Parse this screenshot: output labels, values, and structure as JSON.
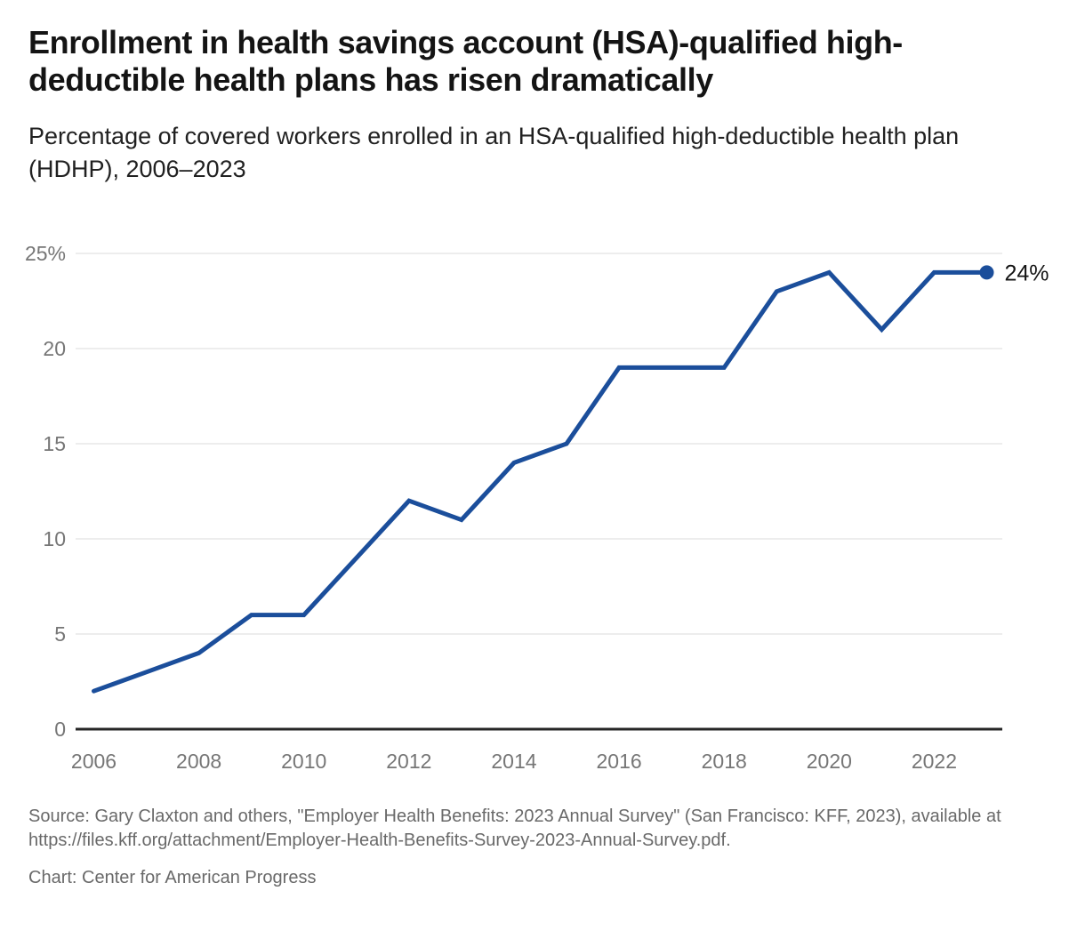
{
  "header": {
    "title": "Enrollment in health savings account (HSA)-qualified high-deductible health plans has risen dramatically",
    "subtitle": "Percentage of covered workers enrolled in an HSA-qualified high-deductible health plan (HDHP), 2006–2023"
  },
  "chart_data": {
    "type": "line",
    "title": "Enrollment in health savings account (HSA)-qualified high-deductible health plans has risen dramatically",
    "subtitle": "Percentage of covered workers enrolled in an HSA-qualified high-deductible health plan (HDHP), 2006–2023",
    "x": [
      2006,
      2007,
      2008,
      2009,
      2010,
      2011,
      2012,
      2013,
      2014,
      2015,
      2016,
      2017,
      2018,
      2019,
      2020,
      2021,
      2022,
      2023
    ],
    "values": [
      2,
      3,
      4,
      6,
      6,
      9,
      12,
      11,
      14,
      15,
      19,
      19,
      19,
      23,
      24,
      21,
      24,
      24
    ],
    "xlabel": "",
    "ylabel": "",
    "xlim": [
      2006,
      2023
    ],
    "ylim": [
      0,
      25
    ],
    "y_ticks": [
      0,
      5,
      10,
      15,
      20,
      25
    ],
    "y_tick_labels": [
      "0",
      "5",
      "10",
      "15",
      "20",
      "25%"
    ],
    "x_ticks": [
      2006,
      2008,
      2010,
      2012,
      2014,
      2016,
      2018,
      2020,
      2022
    ],
    "x_tick_labels": [
      "2006",
      "2008",
      "2010",
      "2012",
      "2014",
      "2016",
      "2018",
      "2020",
      "2022"
    ],
    "grid": "horizontal",
    "legend": "none",
    "end_annotation": "24%",
    "colors": {
      "line": "#1B4E9B",
      "end_dot": "#1B4E9B",
      "gridline": "#E7E7E7",
      "axis_line": "#262626",
      "tick_label": "#767676",
      "annotation_text": "#141414"
    }
  },
  "footer": {
    "source": "Source: Gary Claxton and others, \"Employer Health Benefits: 2023 Annual Survey\" (San Francisco: KFF, 2023), available at https://files.kff.org/attachment/Employer-Health-Benefits-Survey-2023-Annual-Survey.pdf.",
    "credit": "Chart: Center for American Progress"
  }
}
